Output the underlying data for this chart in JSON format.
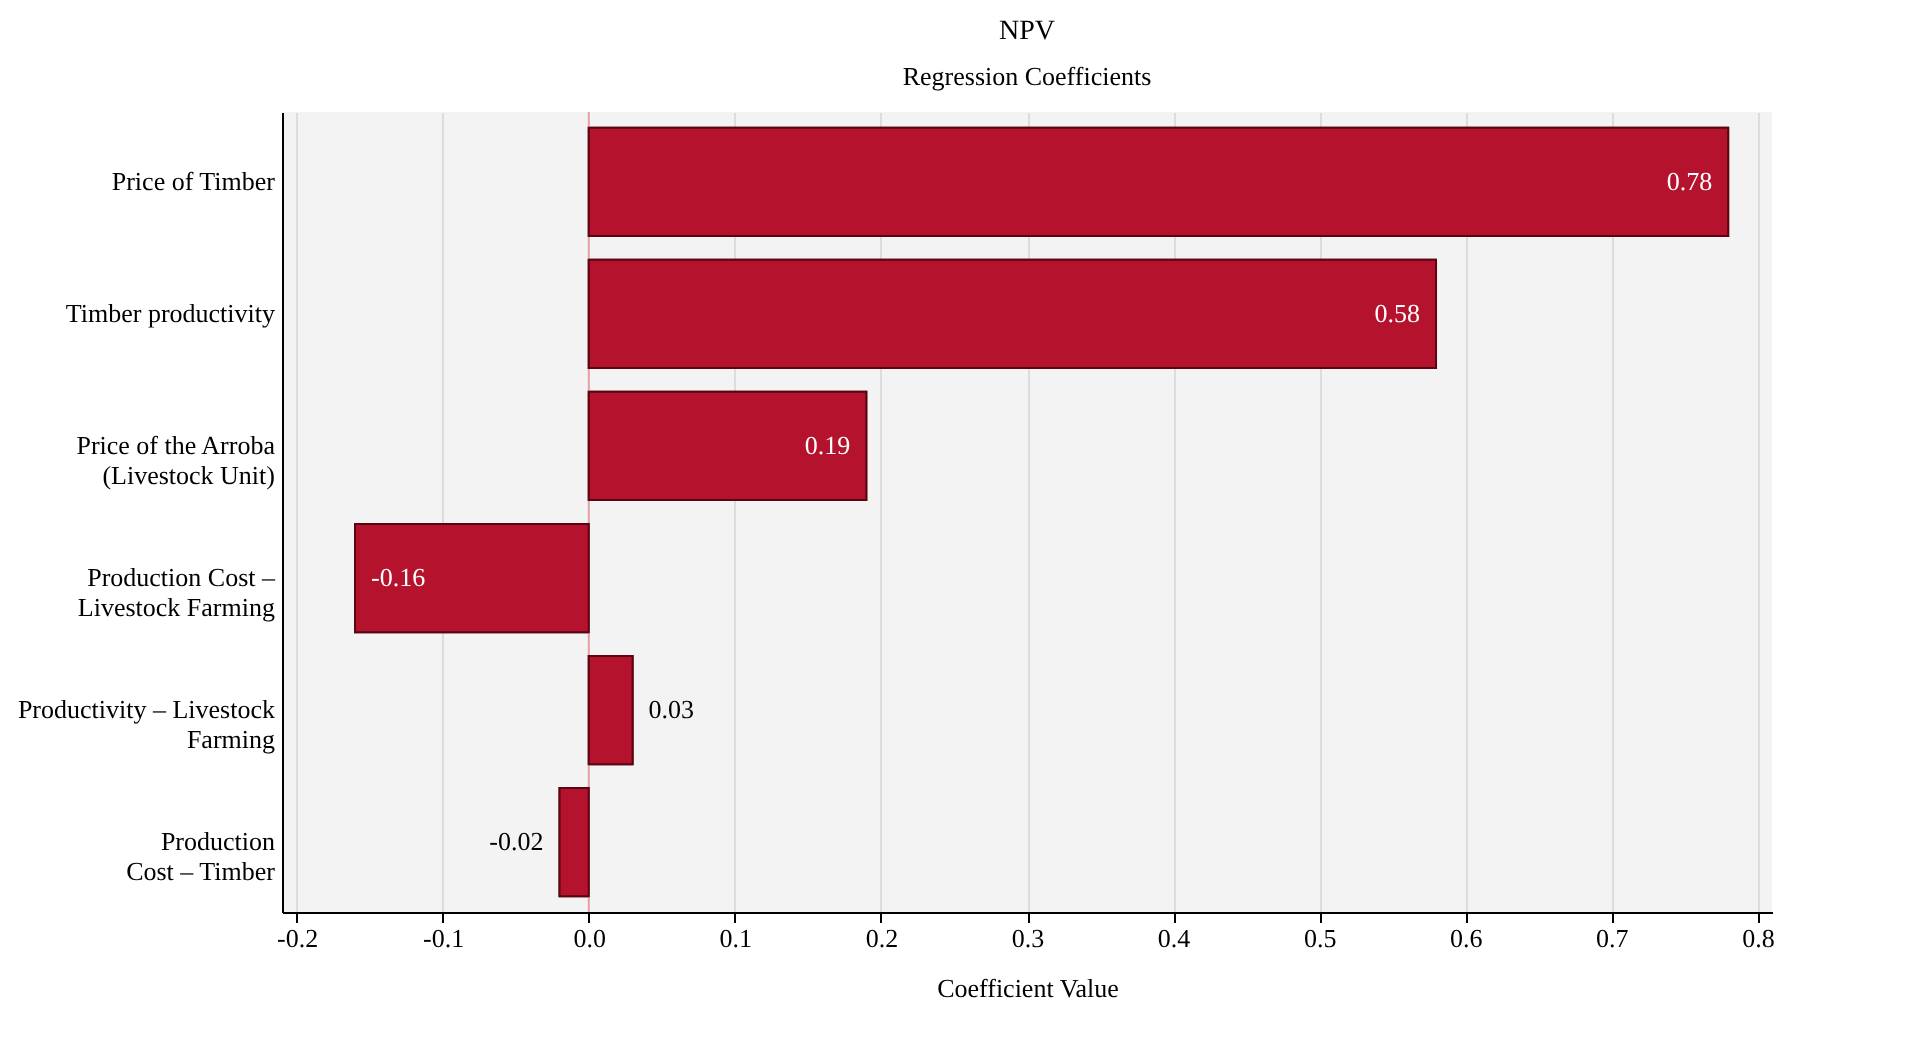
{
  "chart_data": {
    "type": "bar",
    "orientation": "horizontal",
    "title": "NPV",
    "subtitle": "Regression Coefficients",
    "xlabel": "Coefficient Value",
    "categories": [
      "Price of Timber",
      "Timber productivity",
      "Price of the Arroba\n(Livestock Unit)",
      "Production Cost –\nLivestock Farming",
      "Productivity – Livestock\nFarming",
      "Production\nCost – Timber"
    ],
    "values": [
      0.78,
      0.58,
      0.19,
      -0.16,
      0.03,
      -0.02
    ],
    "color": "#b5122e",
    "data_labels": true,
    "xlim": [
      -0.21,
      0.81
    ],
    "xticks": [
      -0.2,
      -0.1,
      {
        "value": 0,
        "label": "0.0"
      },
      0.1,
      0.2,
      0.3,
      0.4,
      0.5,
      0.6,
      0.7,
      0.8
    ],
    "grid": "x",
    "ref_lines": [
      {
        "axis": "x",
        "value": 0,
        "color": "#e3a3a8"
      }
    ]
  }
}
